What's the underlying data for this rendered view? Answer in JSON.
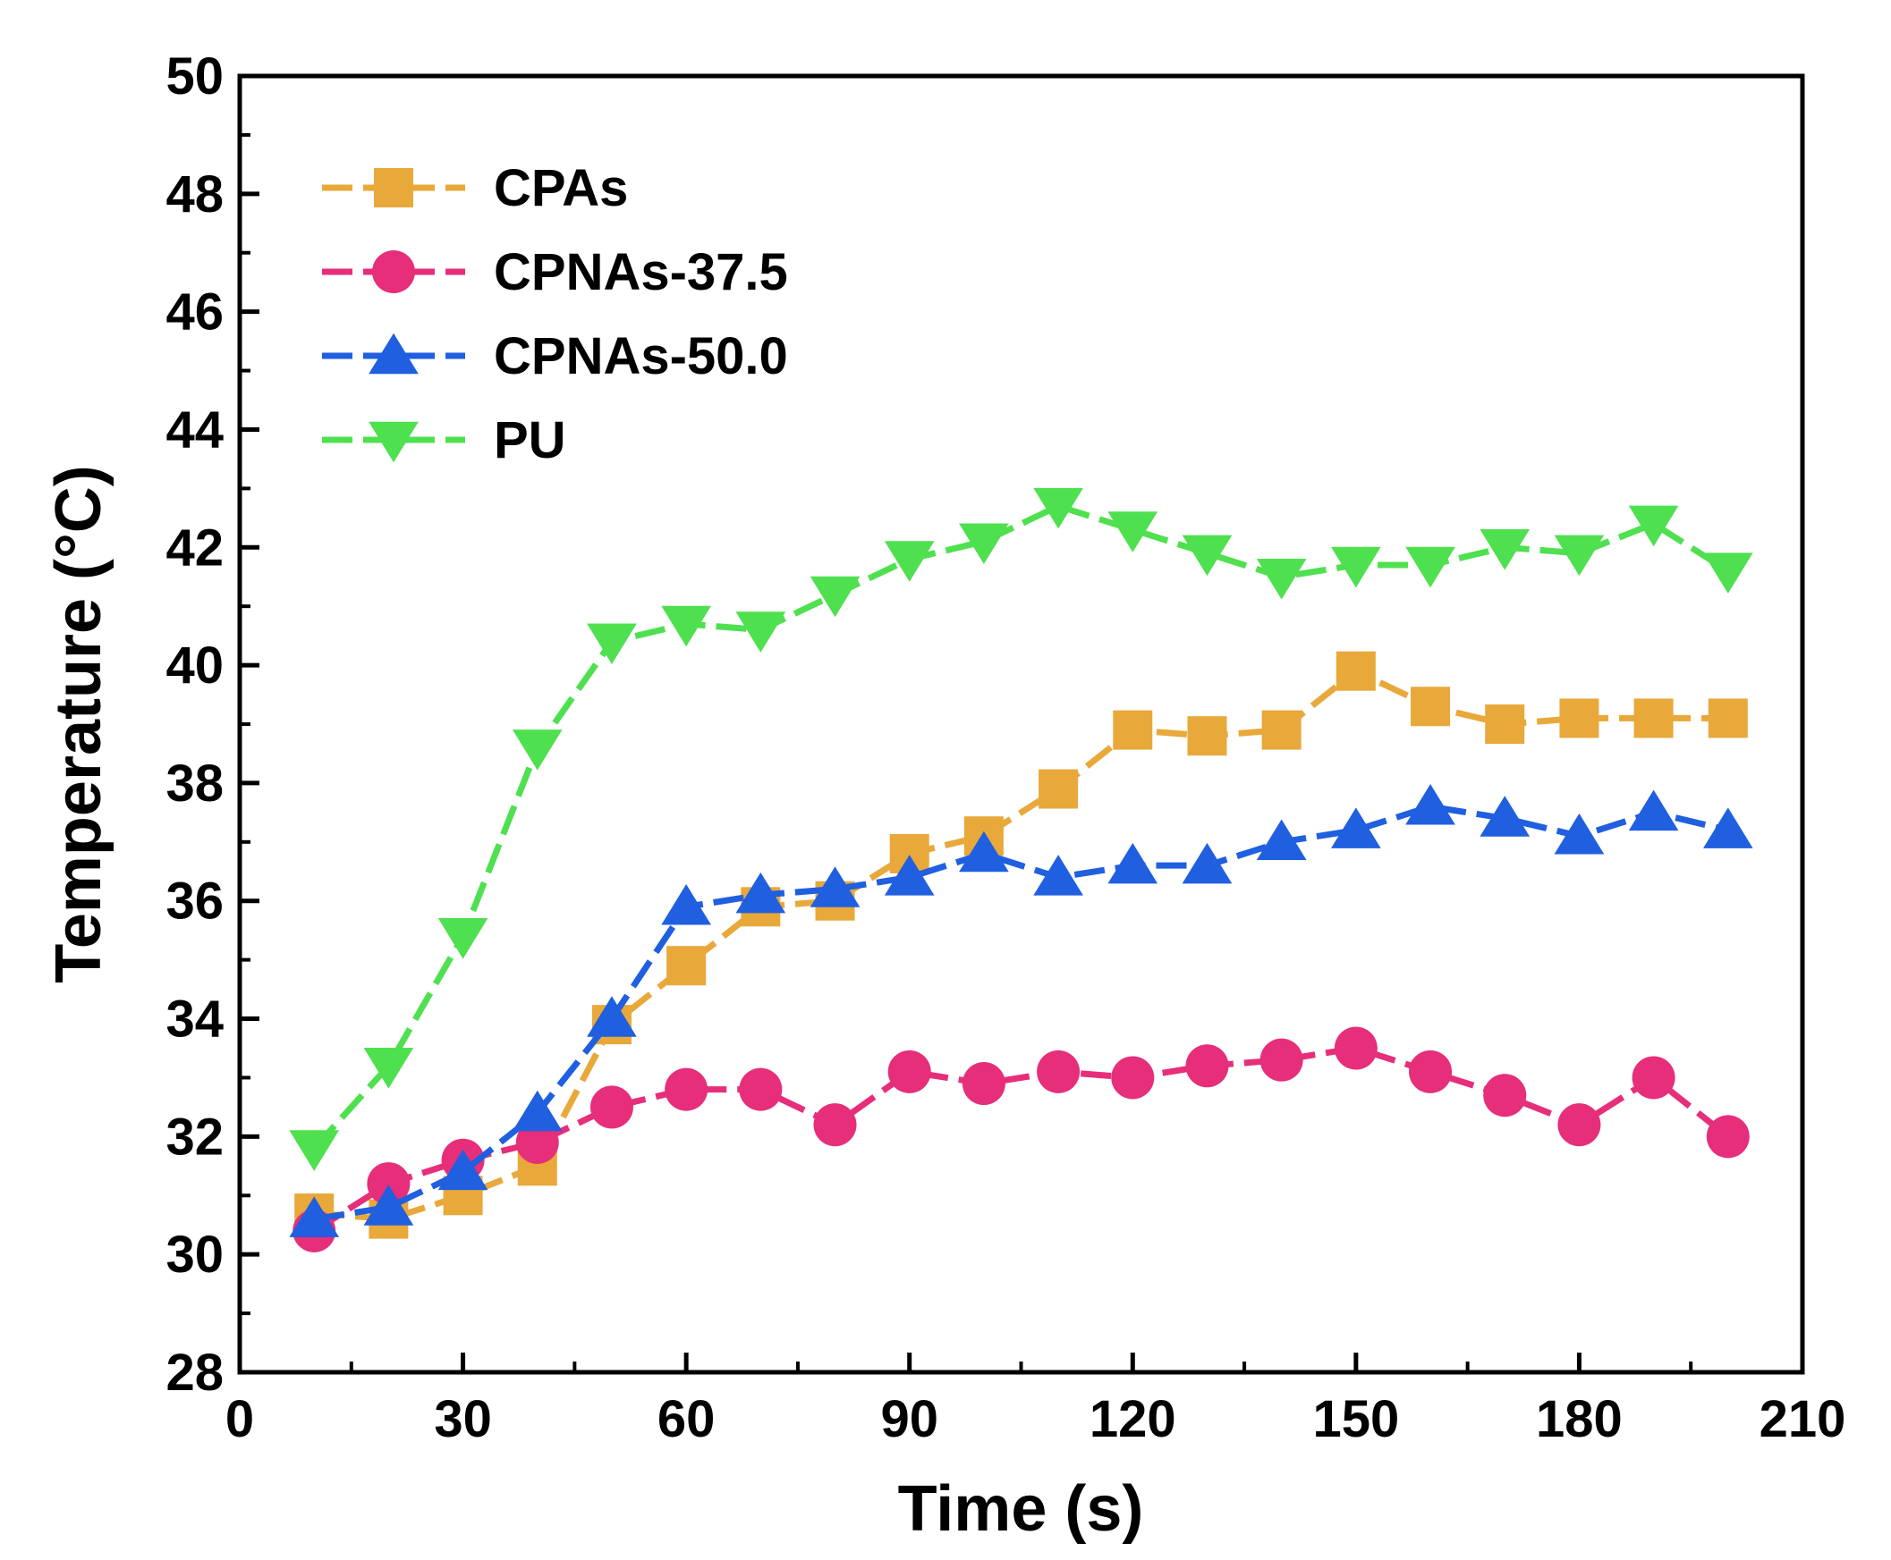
{
  "chart_data": {
    "type": "line",
    "title": "",
    "xlabel": "Time (s)",
    "ylabel": "Temperature (°C)",
    "xlim": [
      0,
      210
    ],
    "ylim": [
      28,
      50
    ],
    "xticks": [
      0,
      30,
      60,
      90,
      120,
      150,
      180,
      210
    ],
    "yticks": [
      28,
      30,
      32,
      34,
      36,
      38,
      40,
      42,
      44,
      46,
      48,
      50
    ],
    "grid": false,
    "legend_position": "top-left",
    "x": [
      10,
      20,
      30,
      40,
      50,
      60,
      70,
      80,
      90,
      100,
      110,
      120,
      130,
      140,
      150,
      160,
      170,
      180,
      190,
      200
    ],
    "series": [
      {
        "name": "CPAs",
        "color": "#e8a83a",
        "marker": "square",
        "values": [
          30.7,
          30.6,
          31.0,
          31.5,
          33.9,
          34.9,
          35.9,
          36.0,
          36.8,
          37.1,
          37.9,
          38.9,
          38.8,
          38.9,
          39.9,
          39.3,
          39.0,
          39.1,
          39.1,
          39.1
        ]
      },
      {
        "name": "CPNAs-37.5",
        "color": "#e62e7a",
        "marker": "circle",
        "values": [
          30.4,
          31.2,
          31.6,
          31.9,
          32.5,
          32.8,
          32.8,
          32.2,
          33.1,
          32.9,
          33.1,
          33.0,
          33.2,
          33.3,
          33.5,
          33.1,
          32.7,
          32.2,
          33.0,
          32.0
        ]
      },
      {
        "name": "CPNAs-50.0",
        "color": "#1f5fe0",
        "marker": "triangle-up",
        "values": [
          30.6,
          30.8,
          31.4,
          32.4,
          34.0,
          35.9,
          36.1,
          36.2,
          36.4,
          36.8,
          36.4,
          36.6,
          36.6,
          37.0,
          37.2,
          37.6,
          37.4,
          37.1,
          37.5,
          37.2
        ]
      },
      {
        "name": "PU",
        "color": "#4fe04f",
        "marker": "triangle-down",
        "values": [
          31.8,
          33.2,
          35.4,
          38.6,
          40.4,
          40.7,
          40.6,
          41.2,
          41.8,
          42.1,
          42.7,
          42.3,
          41.9,
          41.5,
          41.7,
          41.7,
          42.0,
          41.9,
          42.4,
          41.6
        ]
      }
    ]
  }
}
